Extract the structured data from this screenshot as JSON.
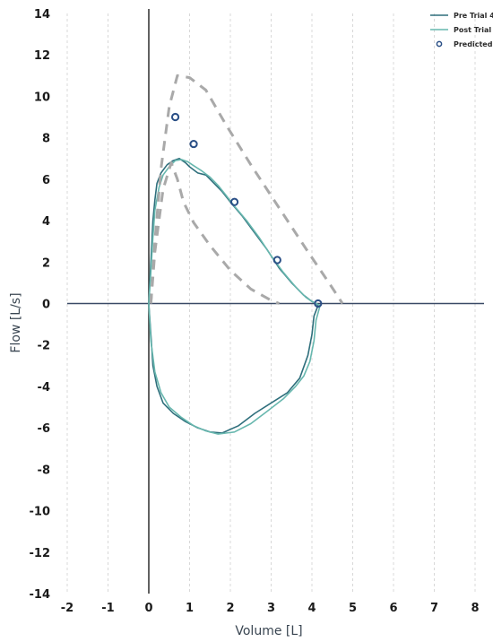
{
  "chart_data": {
    "type": "line",
    "xlabel": "Volume [L]",
    "ylabel": "Flow [L/s]",
    "xlim": [
      -2,
      8
    ],
    "ylim": [
      -14,
      14
    ],
    "x_ticks": [
      -2,
      -1,
      0,
      1,
      2,
      3,
      4,
      5,
      6,
      7,
      8
    ],
    "y_ticks": [
      -14,
      -12,
      -10,
      -8,
      -6,
      -4,
      -2,
      0,
      2,
      4,
      6,
      8,
      10,
      12,
      14
    ],
    "grid": "vertical dashed",
    "legend_position": "top-right",
    "series": [
      {
        "name": "Pre Trial 4",
        "color": "#2f6f7c",
        "style": "solid",
        "x": [
          0.0,
          0.05,
          0.1,
          0.15,
          0.2,
          0.3,
          0.45,
          0.6,
          0.75,
          0.9,
          1.0,
          1.2,
          1.4,
          1.6,
          1.8,
          2.0,
          2.3,
          2.6,
          2.9,
          3.2,
          3.5,
          3.8,
          4.0,
          4.1,
          4.15,
          4.05,
          4.0,
          3.9,
          3.7,
          3.4,
          3.0,
          2.6,
          2.2,
          1.8,
          1.5,
          1.2,
          0.9,
          0.6,
          0.35,
          0.2,
          0.1,
          0.05,
          0.0
        ],
        "y": [
          0.0,
          2.0,
          4.0,
          5.0,
          5.8,
          6.3,
          6.7,
          6.9,
          7.0,
          6.8,
          6.6,
          6.3,
          6.2,
          5.8,
          5.4,
          4.9,
          4.2,
          3.4,
          2.6,
          1.7,
          1.0,
          0.4,
          0.1,
          0.0,
          -0.1,
          -0.6,
          -1.5,
          -2.5,
          -3.6,
          -4.3,
          -4.8,
          -5.3,
          -5.9,
          -6.25,
          -6.2,
          -6.0,
          -5.7,
          -5.3,
          -4.8,
          -4.0,
          -3.0,
          -1.5,
          0.0
        ]
      },
      {
        "name": "Post Trial 1",
        "color": "#67b7ae",
        "style": "solid",
        "x": [
          0.0,
          0.05,
          0.1,
          0.15,
          0.25,
          0.35,
          0.5,
          0.65,
          0.8,
          0.95,
          1.1,
          1.3,
          1.5,
          1.7,
          1.9,
          2.1,
          2.4,
          2.7,
          3.0,
          3.3,
          3.6,
          3.85,
          4.0,
          4.1,
          4.2,
          4.1,
          4.05,
          3.95,
          3.8,
          3.6,
          3.3,
          2.9,
          2.5,
          2.1,
          1.7,
          1.4,
          1.1,
          0.8,
          0.5,
          0.3,
          0.15,
          0.05,
          0.0
        ],
        "y": [
          0.0,
          1.5,
          3.2,
          4.5,
          5.6,
          6.2,
          6.6,
          6.9,
          6.95,
          6.85,
          6.65,
          6.4,
          6.1,
          5.7,
          5.2,
          4.7,
          4.0,
          3.2,
          2.3,
          1.5,
          0.8,
          0.3,
          0.1,
          0.0,
          -0.1,
          -0.8,
          -1.8,
          -2.8,
          -3.5,
          -4.0,
          -4.6,
          -5.2,
          -5.8,
          -6.2,
          -6.3,
          -6.15,
          -5.9,
          -5.5,
          -5.0,
          -4.3,
          -3.3,
          -1.8,
          0.0
        ]
      },
      {
        "name": "",
        "color": "#a9a9a9",
        "style": "dashed",
        "x": [
          0.05,
          0.15,
          0.3,
          0.5,
          0.7,
          1.0,
          1.4,
          1.9,
          2.5,
          3.2,
          3.9,
          4.45,
          4.75
        ],
        "y": [
          0.0,
          3.0,
          6.5,
          9.5,
          11.0,
          10.9,
          10.3,
          8.6,
          6.7,
          4.6,
          2.5,
          0.9,
          0.0
        ]
      },
      {
        "name": "",
        "color": "#a9a9a9",
        "style": "dashed",
        "x": [
          0.05,
          0.15,
          0.35,
          0.55,
          0.7,
          0.85,
          1.1,
          1.5,
          2.0,
          2.5,
          3.0,
          3.2
        ],
        "y": [
          0.0,
          2.5,
          5.5,
          6.8,
          6.0,
          4.9,
          3.9,
          2.8,
          1.6,
          0.7,
          0.15,
          0.0
        ]
      },
      {
        "name": "Predicted",
        "color": "#2a4f86",
        "style": "markers",
        "x": [
          0.65,
          1.1,
          2.1,
          3.15,
          4.15
        ],
        "y": [
          9.0,
          7.7,
          4.9,
          2.1,
          0.0
        ]
      }
    ]
  }
}
